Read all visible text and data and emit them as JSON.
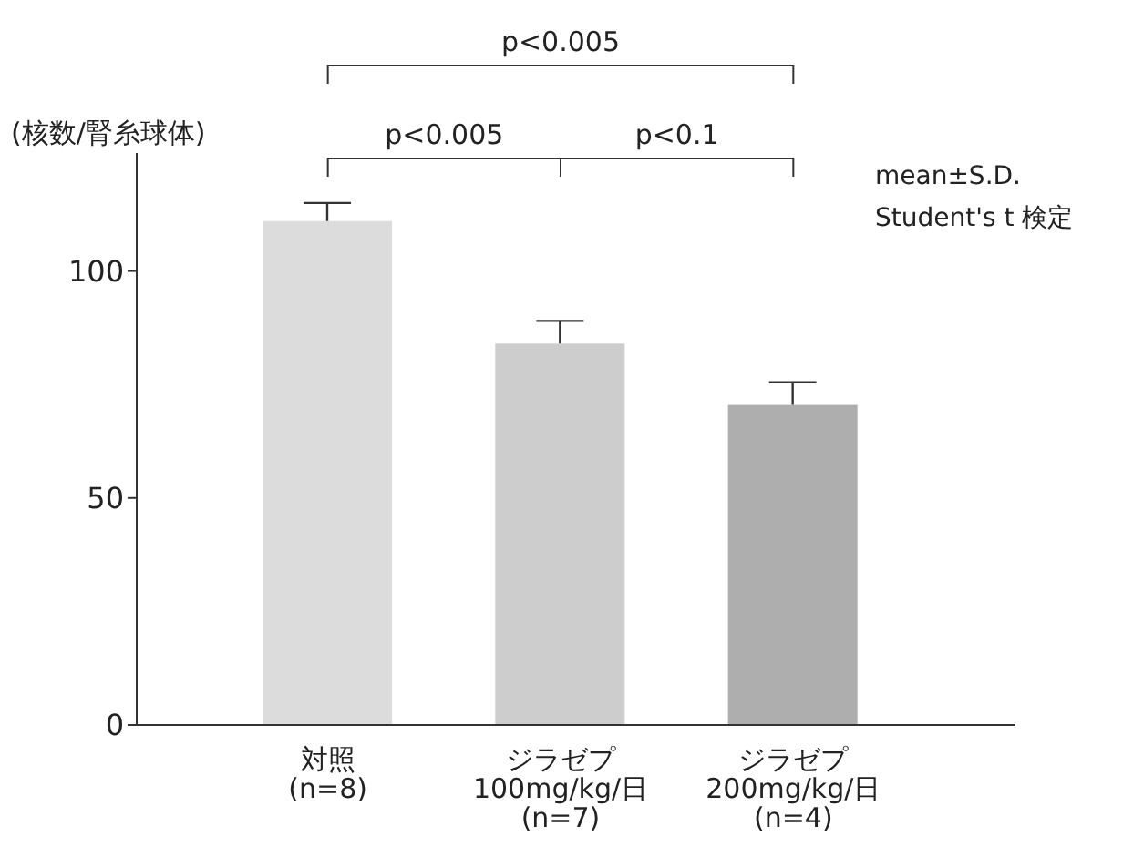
{
  "chart_data": {
    "type": "bar",
    "ylabel": "(核数/腎糸球体)",
    "categories": [
      "対照\n(n=8)",
      "ジラゼプ\n100mg/kg/日\n(n=7)",
      "ジラゼプ\n200mg/kg/日\n(n=4)"
    ],
    "values": [
      111,
      84,
      70.5
    ],
    "errors": [
      4,
      5,
      5
    ],
    "colors": [
      "#dcdcdc",
      "#cdcdcd",
      "#aeaeae"
    ],
    "ylim": [
      0,
      126
    ],
    "yticks": [
      0,
      50,
      100
    ],
    "grid": false,
    "legend": false,
    "annotations": [
      "p<0.005",
      "p<0.005",
      "p<0.1",
      "mean±S.D.",
      "Student's t 検定"
    ]
  }
}
